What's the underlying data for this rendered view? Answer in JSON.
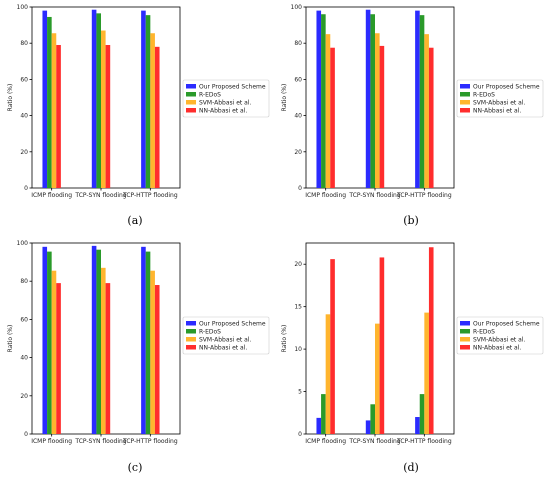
{
  "series_colors": [
    "#2b2bff",
    "#2a9a2a",
    "#ffb52e",
    "#ff2d2d"
  ],
  "chart_data": [
    {
      "type": "bar",
      "caption": "(a)",
      "categories": [
        "ICMP flooding",
        "TCP-SYN flooding",
        "TCP-HTTP flooding"
      ],
      "ylabel": "Ratio (%)",
      "ylim": [
        0,
        100
      ],
      "yticks": [
        0,
        20,
        40,
        60,
        80,
        100
      ],
      "legend_position": "right",
      "series": [
        {
          "name": "Our Proposed Scheme",
          "values": [
            98,
            98.5,
            98
          ]
        },
        {
          "name": "R-EDoS",
          "values": [
            94.5,
            96.5,
            95.5
          ]
        },
        {
          "name": "SVM-Abbasi et al.",
          "values": [
            85.5,
            87,
            85.5
          ]
        },
        {
          "name": "NN-Abbasi et al.",
          "values": [
            79,
            79,
            78
          ]
        }
      ]
    },
    {
      "type": "bar",
      "caption": "(b)",
      "categories": [
        "ICMP flooding",
        "TCP-SYN flooding",
        "TCP-HTTP flooding"
      ],
      "ylabel": "Ratio (%)",
      "ylim": [
        0,
        100
      ],
      "yticks": [
        0,
        20,
        40,
        60,
        80,
        100
      ],
      "legend_position": "right",
      "series": [
        {
          "name": "Our Proposed Scheme",
          "values": [
            98,
            98.5,
            98
          ]
        },
        {
          "name": "R-EDoS",
          "values": [
            96,
            96,
            95.5
          ]
        },
        {
          "name": "SVM-Abbasi et al.",
          "values": [
            85,
            85.5,
            85
          ]
        },
        {
          "name": "NN-Abbasi et al.",
          "values": [
            77.5,
            78.5,
            77.5
          ]
        }
      ]
    },
    {
      "type": "bar",
      "caption": "(c)",
      "categories": [
        "ICMP flooding",
        "TCP-SYN flooding",
        "TCP-HTTP flooding"
      ],
      "ylabel": "Ratio (%)",
      "ylim": [
        0,
        100
      ],
      "yticks": [
        0,
        20,
        40,
        60,
        80,
        100
      ],
      "legend_position": "right",
      "series": [
        {
          "name": "Our Proposed Scheme",
          "values": [
            98,
            98.5,
            98
          ]
        },
        {
          "name": "R-EDoS",
          "values": [
            95.5,
            96.5,
            95.5
          ]
        },
        {
          "name": "SVM-Abbasi et al.",
          "values": [
            85.5,
            87,
            85.5
          ]
        },
        {
          "name": "NN-Abbasi et al.",
          "values": [
            79,
            79,
            78
          ]
        }
      ]
    },
    {
      "type": "bar",
      "caption": "(d)",
      "categories": [
        "ICMP flooding",
        "TCP-SYN flooding",
        "TCP-HTTP flooding"
      ],
      "ylabel": "Ratio (%)",
      "ylim": [
        0,
        22.5
      ],
      "yticks": [
        0,
        5,
        10,
        15,
        20
      ],
      "legend_position": "right",
      "series": [
        {
          "name": "Our Proposed Scheme",
          "values": [
            1.9,
            1.6,
            2.0
          ]
        },
        {
          "name": "R-EDoS",
          "values": [
            4.7,
            3.5,
            4.7
          ]
        },
        {
          "name": "SVM-Abbasi et al.",
          "values": [
            14.1,
            13.0,
            14.3
          ]
        },
        {
          "name": "NN-Abbasi et al.",
          "values": [
            20.6,
            20.8,
            22.0
          ]
        }
      ]
    }
  ]
}
